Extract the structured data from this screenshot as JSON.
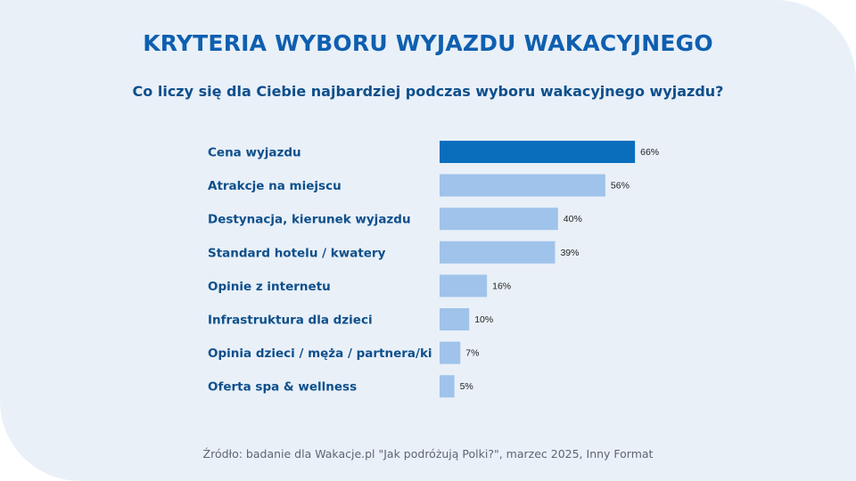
{
  "title": "KRYTERIA WYBORU WYJAZDU WAKACYJNEGO",
  "subtitle": "Co liczy się dla Ciebie najbardziej podczas wyboru wakacyjnego wyjazdu?",
  "source": "Źródło: badanie dla Wakacje.pl \"Jak podróżują Polki?\", marzec 2025, Inny Format",
  "colors": {
    "background": "#e9f0f8",
    "highlight_bar": "#0a6ebd",
    "bar": "#9fc3ea",
    "label": "#0e4f8c",
    "value_label": "#222222"
  },
  "chart_data": {
    "type": "bar",
    "orientation": "horizontal",
    "categories": [
      "Cena wyjazdu",
      "Atrakcje na miejscu",
      "Destynacja, kierunek wyjazdu",
      "Standard hotelu / kwatery",
      "Opinie z internetu",
      "Infrastruktura dla dzieci",
      "Opinia dzieci / męża / partnera/ki",
      "Oferta spa & wellness"
    ],
    "values": [
      66,
      56,
      40,
      39,
      16,
      10,
      7,
      5
    ],
    "value_labels": [
      "66%",
      "56%",
      "40%",
      "39%",
      "16%",
      "10%",
      "7%",
      "5%"
    ],
    "unit": "%",
    "highlighted_index": 0,
    "grid": false,
    "legend": "none"
  }
}
